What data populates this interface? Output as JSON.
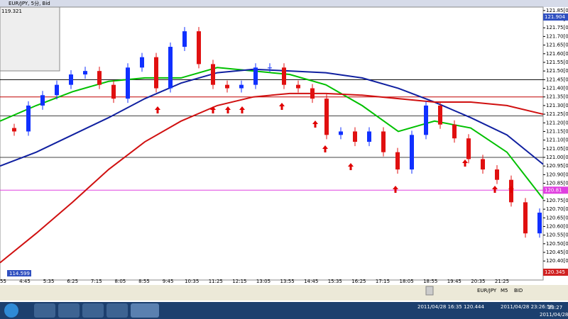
{
  "window": {
    "title": "EUR/JPY, 5分, Bid",
    "corner_price": "119.321"
  },
  "chart": {
    "ylim": [
      120.29,
      121.87
    ],
    "yticks": [
      {
        "value": 121.85,
        "label": "121.85[0]"
      },
      {
        "value": 121.8,
        "label": "121.80[0]"
      },
      {
        "value": 121.75,
        "label": "121.75[0]"
      },
      {
        "value": 121.7,
        "label": "121.70[0]"
      },
      {
        "value": 121.65,
        "label": "121.65[0]"
      },
      {
        "value": 121.6,
        "label": "121.60[0]"
      },
      {
        "value": 121.55,
        "label": "121.55[0]"
      },
      {
        "value": 121.5,
        "label": "121.50[0]"
      },
      {
        "value": 121.45,
        "label": "121.45[0]"
      },
      {
        "value": 121.4,
        "label": "121.40[0]"
      },
      {
        "value": 121.35,
        "label": "121.35[0]"
      },
      {
        "value": 121.3,
        "label": "121.30[0]"
      },
      {
        "value": 121.25,
        "label": "121.25[0]"
      },
      {
        "value": 121.2,
        "label": "121.20[0]"
      },
      {
        "value": 121.15,
        "label": "121.15[0]"
      },
      {
        "value": 121.1,
        "label": "121.10[0]"
      },
      {
        "value": 121.05,
        "label": "121.05[0]"
      },
      {
        "value": 121,
        "label": "121.00[0]"
      },
      {
        "value": 120.95,
        "label": "120.95[0]"
      },
      {
        "value": 120.9,
        "label": "120.90[0]"
      },
      {
        "value": 120.85,
        "label": "120.85[0]"
      },
      {
        "value": 120.75,
        "label": "120.75[0]"
      },
      {
        "value": 120.7,
        "label": "120.70[0]"
      },
      {
        "value": 120.65,
        "label": "120.65[0]"
      },
      {
        "value": 120.6,
        "label": "120.60[0]"
      },
      {
        "value": 120.55,
        "label": "120.55[0]"
      },
      {
        "value": 120.5,
        "label": "120.50[0]"
      },
      {
        "value": 120.45,
        "label": "120.45[0]"
      },
      {
        "value": 120.4,
        "label": "120.40[0]"
      }
    ],
    "time_labels": [
      "55",
      "4:45",
      "5:35",
      "6:25",
      "7:15",
      "8:05",
      "8:55",
      "9:45",
      "10:35",
      "11:25",
      "12:15",
      "13:05",
      "13:55",
      "14:45",
      "15:35",
      "16:25",
      "17:15",
      "18:05",
      "18:55",
      "19:45",
      "20:35",
      "21:25"
    ],
    "closes": [
      121.17,
      121.15,
      121.3,
      121.36,
      121.42,
      121.48,
      121.5,
      121.42,
      121.34,
      121.52,
      121.58,
      121.4,
      121.64,
      121.73,
      121.54,
      121.42,
      121.4,
      121.42,
      121.52,
      121.52,
      121.42,
      121.4,
      121.34,
      121.13,
      121.15,
      121.09,
      121.15,
      121.03,
      120.93,
      121.13,
      121.3,
      121.19,
      121.11,
      120.99,
      120.93,
      120.87,
      120.74,
      120.56,
      120.68
    ],
    "moving_averages": [
      {
        "color": "#00c000",
        "values": [
          121.21,
          121.3,
          121.38,
          121.44,
          121.46,
          121.46,
          121.52,
          121.5,
          121.48,
          121.42,
          121.3,
          121.15,
          121.21,
          121.17,
          121.03,
          120.76
        ]
      },
      {
        "color": "#1020a0",
        "values": [
          120.95,
          121.03,
          121.13,
          121.23,
          121.34,
          121.43,
          121.49,
          121.51,
          121.5,
          121.49,
          121.46,
          121.4,
          121.32,
          121.23,
          121.13,
          120.96
        ]
      },
      {
        "color": "#d01010",
        "values": [
          120.39,
          120.56,
          120.74,
          120.93,
          121.09,
          121.21,
          121.3,
          121.35,
          121.37,
          121.37,
          121.36,
          121.34,
          121.32,
          121.32,
          121.3,
          121.25
        ]
      }
    ],
    "levels": [
      {
        "value": 121.45,
        "color": "#000000"
      },
      {
        "value": 121.35,
        "color": "#c00000"
      },
      {
        "value": 121.24,
        "color": "#444444"
      },
      {
        "value": 121,
        "color": "#444444"
      },
      {
        "value": 120.81,
        "color": "#e040e0"
      }
    ],
    "price_tag": "120.81",
    "top_tag": "121.904",
    "bottom_tag": "120.345",
    "left_tag": "114.599"
  },
  "toolbar": {
    "symbol": "EUR/JPY",
    "period": "M5",
    "side": "BID"
  },
  "taskbar": {
    "quote": "2011/04/28 16:35 120.444",
    "server_time": "2011/04/28 23:26:58",
    "clock": "23:27",
    "date": "2011/04/28"
  }
}
